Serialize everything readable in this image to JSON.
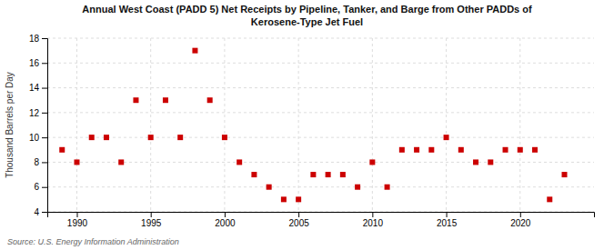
{
  "chart_data": {
    "type": "scatter",
    "title": "Annual West Coast (PADD 5) Net Receipts by Pipeline, Tanker, and Barge from Other PADDs of\nKerosene-Type Jet Fuel",
    "ylabel": "Thousand Barrels per Day",
    "source": "Source: U.S. Energy Information Administration",
    "x": [
      1989,
      1990,
      1991,
      1992,
      1993,
      1994,
      1995,
      1996,
      1997,
      1998,
      1999,
      2000,
      2001,
      2002,
      2003,
      2004,
      2005,
      2006,
      2007,
      2008,
      2009,
      2010,
      2011,
      2012,
      2013,
      2014,
      2015,
      2016,
      2017,
      2018,
      2019,
      2020,
      2021,
      2022,
      2023
    ],
    "values": [
      9,
      8,
      10,
      10,
      8,
      13,
      10,
      13,
      10,
      17,
      13,
      10,
      8,
      7,
      6,
      5,
      5,
      7,
      7,
      7,
      6,
      8,
      6,
      9,
      9,
      9,
      10,
      9,
      8,
      8,
      9,
      9,
      9,
      5,
      7
    ],
    "color": "#cc0000",
    "marker": "square",
    "xlim": [
      1988,
      2025
    ],
    "ylim": [
      4,
      18
    ],
    "xticks": [
      1990,
      1995,
      2000,
      2005,
      2010,
      2015,
      2020
    ],
    "yticks": [
      4,
      6,
      8,
      10,
      12,
      14,
      16,
      18
    ],
    "grid": true
  }
}
